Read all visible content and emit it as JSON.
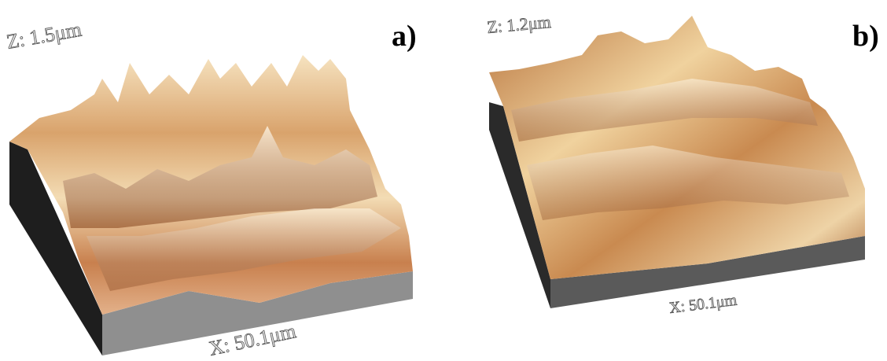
{
  "panels": [
    {
      "label": "a)",
      "z_axis": "Z: 1.5μm",
      "x_axis": "X: 50.1μm"
    },
    {
      "label": "b)",
      "z_axis": "Z: 1.2μm",
      "x_axis": "X: 50.1μm"
    }
  ]
}
